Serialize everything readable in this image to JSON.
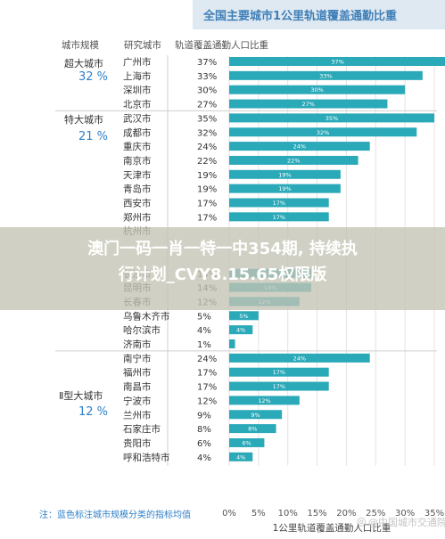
{
  "title": "全国主要城市1公里轨道覆盖通勤比重",
  "headers": {
    "size": "城市规模",
    "city": "研究城市",
    "metric": "轨道覆盖通勤人口比重"
  },
  "groups": [
    {
      "name": "超大城市",
      "share": "32 %"
    },
    {
      "name": "特大城市",
      "share": "21 %"
    },
    {
      "name": "Ⅱ型大城市",
      "share": "12 %"
    }
  ],
  "note": "注：蓝色标注城市规模分类的指标均值",
  "banner": {
    "line1": "澳门一码一肖一特一中354期, 持续执",
    "line2": "行计划_CVY8.15.65权限版"
  },
  "watermark": "@中国城市交通院",
  "chart_data": {
    "type": "bar",
    "orientation": "horizontal",
    "title": "全国主要城市1公里轨道覆盖通勤比重",
    "xlabel": "1公里轨道覆盖通勤人口比重",
    "xlim": [
      0,
      35
    ],
    "x_ticks": [
      "0%",
      "5%",
      "10%",
      "15%",
      "20%",
      "25%",
      "30%",
      "35%"
    ],
    "grid": true,
    "bar_color": "#2aa9b8",
    "categories": [
      "广州市",
      "上海市",
      "深圳市",
      "北京市",
      "武汉市",
      "成都市",
      "重庆市",
      "南京市",
      "天津市",
      "青岛市",
      "西安市",
      "郑州市",
      "杭州市",
      "",
      "",
      "长沙市",
      "昆明市",
      "长春市",
      "乌鲁木齐市",
      "哈尔滨市",
      "济南市",
      "南宁市",
      "福州市",
      "南昌市",
      "宁波市",
      "兰州市",
      "石家庄市",
      "贵阳市",
      "呼和浩特市"
    ],
    "values": [
      37,
      33,
      30,
      27,
      35,
      32,
      24,
      22,
      19,
      19,
      17,
      17,
      null,
      null,
      null,
      14,
      14,
      12,
      5,
      4,
      1,
      24,
      17,
      17,
      12,
      9,
      8,
      6,
      4
    ],
    "value_labels": [
      "37%",
      "33%",
      "30%",
      "27%",
      "35%",
      "32%",
      "24%",
      "22%",
      "19%",
      "19%",
      "17%",
      "17%",
      "",
      "",
      "",
      "14%",
      "14%",
      "12%",
      "5%",
      "4%",
      "1%",
      "24%",
      "17%",
      "17%",
      "12%",
      "9%",
      "8%",
      "6%",
      "4%"
    ]
  }
}
